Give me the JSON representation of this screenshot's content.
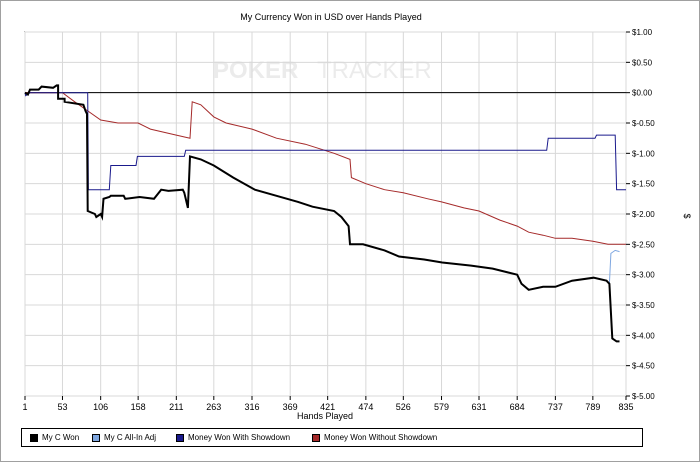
{
  "chart_data": {
    "type": "line",
    "title": "My Currency Won in USD over Hands Played",
    "xlabel": "Hands Played",
    "ylabel": "$",
    "watermark": {
      "left": "POKER",
      "right": "TRACKER"
    },
    "xlim": [
      1,
      835
    ],
    "ylim": [
      -5.0,
      1.0
    ],
    "x_ticks": [
      1,
      53,
      106,
      158,
      211,
      263,
      316,
      369,
      421,
      474,
      526,
      579,
      631,
      684,
      737,
      789,
      835
    ],
    "y_ticks": [
      1.0,
      0.5,
      0.0,
      -0.5,
      -1.0,
      -1.5,
      -2.0,
      -2.5,
      -3.0,
      -3.5,
      -4.0,
      -4.5,
      -5.0
    ],
    "y_tick_labels": [
      "$1.00",
      "$0.50",
      "$0.00",
      "$-0.50",
      "$-1.00",
      "$-1.50",
      "$-2.00",
      "$-2.50",
      "$-3.00",
      "$-3.50",
      "$-4.00",
      "$-4.50",
      "$-5.00"
    ],
    "grid": true,
    "legend_position": "bottom",
    "series": [
      {
        "name": "My C Won",
        "color": "#000000",
        "points": [
          [
            1,
            0.0
          ],
          [
            5,
            -0.03
          ],
          [
            8,
            0.05
          ],
          [
            20,
            0.05
          ],
          [
            24,
            0.1
          ],
          [
            40,
            0.08
          ],
          [
            45,
            0.12
          ],
          [
            47,
            0.12
          ],
          [
            47,
            -0.1
          ],
          [
            56,
            -0.1
          ],
          [
            56,
            -0.15
          ],
          [
            82,
            -0.2
          ],
          [
            85,
            -0.3
          ],
          [
            87,
            -0.35
          ],
          [
            88,
            -1.95
          ],
          [
            98,
            -2.0
          ],
          [
            100,
            -2.05
          ],
          [
            106,
            -2.0
          ],
          [
            108,
            -2.05
          ],
          [
            110,
            -1.75
          ],
          [
            118,
            -1.72
          ],
          [
            120,
            -1.7
          ],
          [
            138,
            -1.7
          ],
          [
            140,
            -1.75
          ],
          [
            160,
            -1.72
          ],
          [
            180,
            -1.75
          ],
          [
            190,
            -1.6
          ],
          [
            200,
            -1.62
          ],
          [
            220,
            -1.6
          ],
          [
            222,
            -1.65
          ],
          [
            227,
            -1.9
          ],
          [
            230,
            -1.05
          ],
          [
            245,
            -1.1
          ],
          [
            263,
            -1.2
          ],
          [
            290,
            -1.4
          ],
          [
            320,
            -1.6
          ],
          [
            350,
            -1.7
          ],
          [
            380,
            -1.8
          ],
          [
            400,
            -1.88
          ],
          [
            430,
            -1.95
          ],
          [
            440,
            -2.05
          ],
          [
            450,
            -2.2
          ],
          [
            452,
            -2.5
          ],
          [
            470,
            -2.5
          ],
          [
            500,
            -2.6
          ],
          [
            520,
            -2.7
          ],
          [
            555,
            -2.75
          ],
          [
            580,
            -2.8
          ],
          [
            620,
            -2.85
          ],
          [
            650,
            -2.9
          ],
          [
            684,
            -3.0
          ],
          [
            690,
            -3.15
          ],
          [
            700,
            -3.25
          ],
          [
            720,
            -3.2
          ],
          [
            737,
            -3.2
          ],
          [
            760,
            -3.1
          ],
          [
            790,
            -3.05
          ],
          [
            808,
            -3.1
          ],
          [
            812,
            -3.15
          ],
          [
            816,
            -4.05
          ],
          [
            822,
            -4.1
          ],
          [
            826,
            -4.1
          ]
        ]
      },
      {
        "name": "My C All-In Adj",
        "color": "#7fa7e0",
        "points": [
          [
            812,
            -3.15
          ],
          [
            814,
            -2.65
          ],
          [
            820,
            -2.6
          ],
          [
            826,
            -2.62
          ]
        ]
      },
      {
        "name": "Money Won With Showdown",
        "color": "#1a1a8c",
        "points": [
          [
            1,
            0.0
          ],
          [
            2,
            -0.05
          ],
          [
            8,
            0.0
          ],
          [
            88,
            0.0
          ],
          [
            89,
            -1.6
          ],
          [
            118,
            -1.6
          ],
          [
            120,
            -1.2
          ],
          [
            155,
            -1.2
          ],
          [
            157,
            -1.05
          ],
          [
            222,
            -1.05
          ],
          [
            224,
            -0.95
          ],
          [
            725,
            -0.95
          ],
          [
            727,
            -0.75
          ],
          [
            792,
            -0.75
          ],
          [
            794,
            -0.7
          ],
          [
            820,
            -0.7
          ],
          [
            822,
            -1.6
          ],
          [
            835,
            -1.6
          ]
        ]
      },
      {
        "name": "Money Won Without Showdown",
        "color": "#a52a2a",
        "points": [
          [
            1,
            0.0
          ],
          [
            53,
            0.0
          ],
          [
            70,
            -0.15
          ],
          [
            88,
            -0.3
          ],
          [
            106,
            -0.45
          ],
          [
            130,
            -0.5
          ],
          [
            158,
            -0.5
          ],
          [
            175,
            -0.6
          ],
          [
            211,
            -0.7
          ],
          [
            230,
            -0.75
          ],
          [
            233,
            -0.15
          ],
          [
            245,
            -0.2
          ],
          [
            263,
            -0.4
          ],
          [
            280,
            -0.5
          ],
          [
            316,
            -0.6
          ],
          [
            350,
            -0.75
          ],
          [
            390,
            -0.85
          ],
          [
            430,
            -1.0
          ],
          [
            452,
            -1.1
          ],
          [
            454,
            -1.4
          ],
          [
            474,
            -1.5
          ],
          [
            500,
            -1.6
          ],
          [
            526,
            -1.65
          ],
          [
            560,
            -1.75
          ],
          [
            579,
            -1.8
          ],
          [
            610,
            -1.9
          ],
          [
            631,
            -1.95
          ],
          [
            660,
            -2.1
          ],
          [
            684,
            -2.2
          ],
          [
            700,
            -2.3
          ],
          [
            720,
            -2.35
          ],
          [
            737,
            -2.4
          ],
          [
            760,
            -2.4
          ],
          [
            789,
            -2.45
          ],
          [
            810,
            -2.5
          ],
          [
            835,
            -2.5
          ]
        ]
      }
    ]
  },
  "legend": {
    "items": [
      "My C Won",
      "My C All-In Adj",
      "Money Won With Showdown",
      "Money Won Without Showdown"
    ],
    "colors": [
      "#000000",
      "#7fa7e0",
      "#1a1a8c",
      "#a52a2a"
    ]
  }
}
